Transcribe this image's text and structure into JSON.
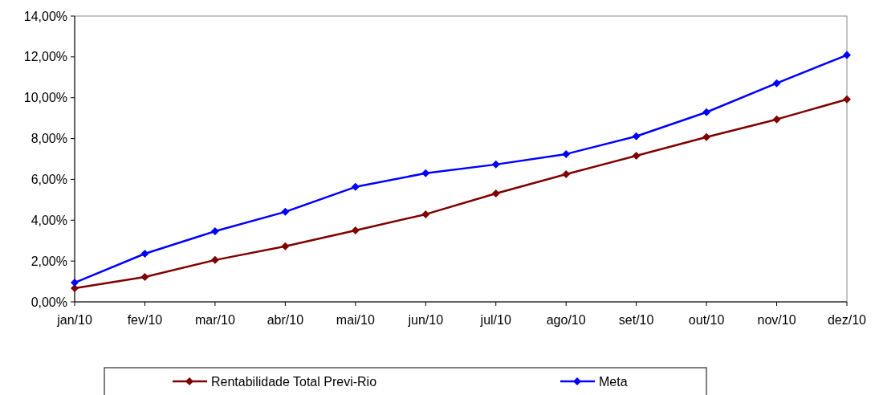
{
  "chart_data": {
    "type": "line",
    "categories": [
      "jan/10",
      "fev/10",
      "mar/10",
      "abr/10",
      "mai/10",
      "jun/10",
      "jul/10",
      "ago/10",
      "set/10",
      "out/10",
      "nov/10",
      "dez/10"
    ],
    "series": [
      {
        "name": "Rentabilidade Total Previ-Rio",
        "color": "#800000",
        "values": [
          0.67,
          1.22,
          2.05,
          2.72,
          3.5,
          4.29,
          5.31,
          6.25,
          7.16,
          8.07,
          8.94,
          9.92
        ]
      },
      {
        "name": "Meta",
        "color": "#0000ff",
        "values": [
          0.94,
          2.36,
          3.46,
          4.41,
          5.63,
          6.3,
          6.73,
          7.24,
          8.11,
          9.29,
          10.71,
          12.09
        ]
      }
    ],
    "ylim": [
      0,
      14
    ],
    "yticks": [
      {
        "value": 0,
        "label": "0,00%"
      },
      {
        "value": 2,
        "label": "2,00%"
      },
      {
        "value": 4,
        "label": "4,00%"
      },
      {
        "value": 6,
        "label": "6,00%"
      },
      {
        "value": 8,
        "label": "8,00%"
      },
      {
        "value": 10,
        "label": "10,00%"
      },
      {
        "value": 12,
        "label": "12,00%"
      },
      {
        "value": 14,
        "label": "14,00%"
      }
    ],
    "grid": false,
    "legend": "bottom",
    "marker": "diamond",
    "line_style": "solid"
  }
}
